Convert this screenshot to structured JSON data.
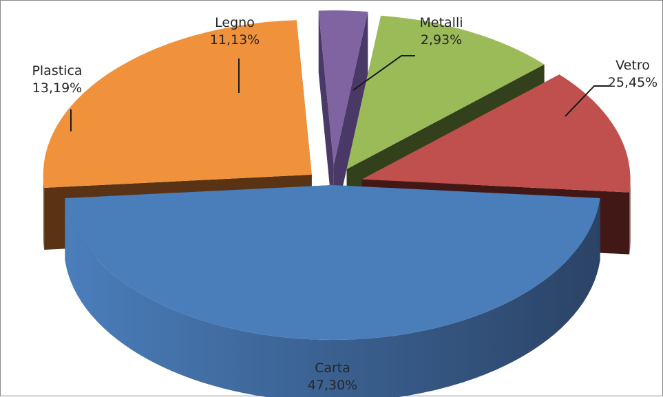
{
  "chart_data": {
    "type": "pie",
    "variant": "3d-exploded",
    "title": "",
    "legend": "none",
    "slices": [
      {
        "name": "Carta",
        "value": 47.3,
        "label": "47,30%",
        "color": "#4A7EBB",
        "side": "#3B5F8E",
        "inner": "#2B4366"
      },
      {
        "name": "Vetro",
        "value": 25.45,
        "label": "25,45%",
        "color": "#F0923C",
        "side": "#6A3E18",
        "inner": "#5A3314"
      },
      {
        "name": "Metalli",
        "value": 2.93,
        "label": "2,93%",
        "color": "#8064A2",
        "side": "#5E4880",
        "inner": "#4A3866"
      },
      {
        "name": "Legno",
        "value": 11.13,
        "label": "11,13%",
        "color": "#9BBB59",
        "side": "#3E4C22",
        "inner": "#33401C"
      },
      {
        "name": "Plastica",
        "value": 13.19,
        "label": "13,19%",
        "color": "#C0504D",
        "side": "#4E1E1D",
        "inner": "#421817"
      }
    ]
  }
}
